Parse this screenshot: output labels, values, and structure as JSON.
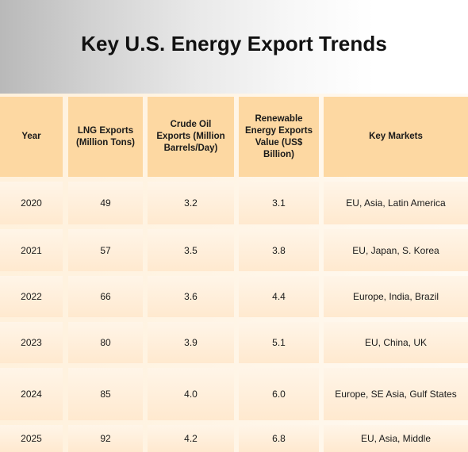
{
  "title": "Key U.S. Energy Export Trends",
  "columns": [
    "Year",
    "LNG Exports (Million Tons)",
    "Crude Oil Exports (Million Barrels/Day)",
    "Renewable Energy Exports Value (US$ Billion)",
    "Key Markets"
  ],
  "rows": [
    [
      "2020",
      "49",
      "3.2",
      "3.1",
      "EU, Asia, Latin America"
    ],
    [
      "2021",
      "57",
      "3.5",
      "3.8",
      "EU, Japan, S. Korea"
    ],
    [
      "2022",
      "66",
      "3.6",
      "4.4",
      "Europe, India, Brazil"
    ],
    [
      "2023",
      "80",
      "3.9",
      "5.1",
      "EU, China, UK"
    ],
    [
      "2024",
      "85",
      "4.0",
      "6.0",
      "Europe, SE Asia, Gulf States"
    ],
    [
      "2025",
      "92",
      "4.2",
      "6.8",
      "EU, Asia, Middle"
    ]
  ],
  "colors": {
    "header_fill": "#fdd8a2",
    "row_fill_top": "#fff5e8",
    "row_fill_bottom": "#ffe9cf"
  }
}
